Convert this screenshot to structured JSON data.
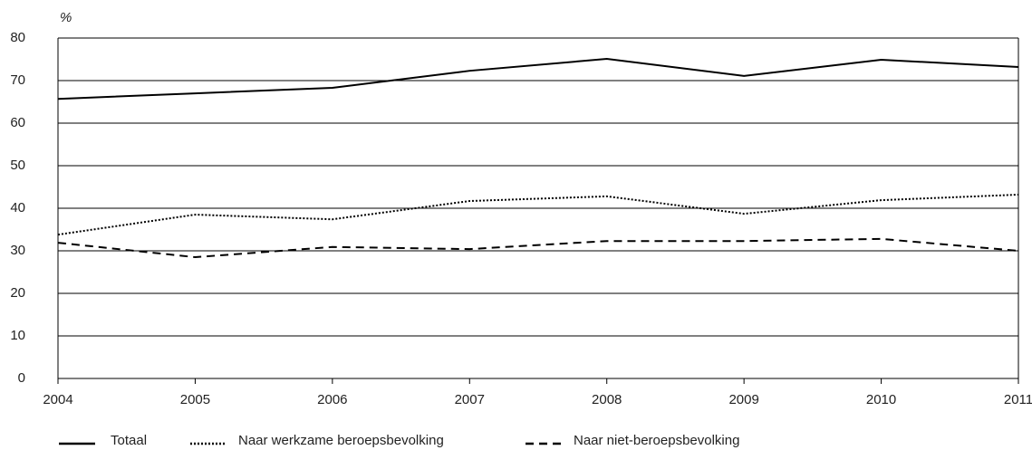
{
  "chart_data": {
    "type": "line",
    "y_label": "%",
    "x": [
      2004,
      2005,
      2006,
      2007,
      2008,
      2009,
      2010,
      2011
    ],
    "xlim": [
      2004,
      2011
    ],
    "xticks": [
      2004,
      2005,
      2006,
      2007,
      2008,
      2009,
      2010,
      2011
    ],
    "ylim": [
      0,
      80
    ],
    "yticks": [
      0,
      10,
      20,
      30,
      40,
      50,
      60,
      70,
      80
    ],
    "grid": true,
    "legend": "bottom",
    "series": [
      {
        "name": "Totaal",
        "color": "#000000",
        "dash": "solid",
        "values": [
          65.7,
          67,
          68.3,
          72.3,
          75.1,
          71.1,
          74.9,
          73.2
        ]
      },
      {
        "name": "Naar werkzame beroepsbevolking",
        "color": "#000000",
        "dash": "dotted",
        "values": [
          33.8,
          38.5,
          37.4,
          41.7,
          42.8,
          38.7,
          41.9,
          43.2
        ]
      },
      {
        "name": "Naar niet-beroepsbevolking",
        "color": "#000000",
        "dash": "dashed",
        "values": [
          31.9,
          28.5,
          30.9,
          30.4,
          32.3,
          32.3,
          32.8,
          30
        ]
      }
    ]
  }
}
